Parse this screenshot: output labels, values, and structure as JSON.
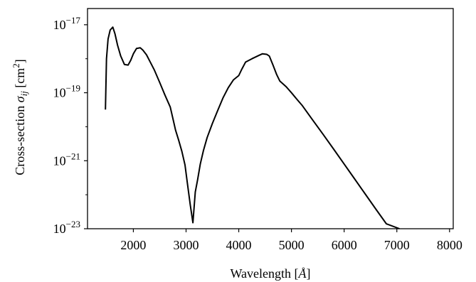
{
  "chart_data": {
    "type": "line",
    "xlabel": "Wavelength [Å]",
    "ylabel": "Cross-section σ_ij [cm²]",
    "xlim": [
      1130,
      8070
    ],
    "ylim": [
      1e-23,
      3e-17
    ],
    "yscale": "log",
    "grid": false,
    "x_ticks": [
      2000,
      3000,
      4000,
      5000,
      6000,
      7000,
      8000
    ],
    "x_tick_labels": [
      "2000",
      "3000",
      "4000",
      "5000",
      "6000",
      "7000",
      "8000"
    ],
    "y_ticks": [
      1e-23,
      1e-21,
      1e-19,
      1e-17
    ],
    "y_tick_labels": [
      {
        "base": "10",
        "exp": "−23"
      },
      {
        "base": "10",
        "exp": "−21"
      },
      {
        "base": "10",
        "exp": "−19"
      },
      {
        "base": "10",
        "exp": "−17"
      }
    ],
    "series": [
      {
        "color": "#000000",
        "x": [
          1470,
          1490,
          1520,
          1560,
          1610,
          1650,
          1700,
          1760,
          1830,
          1900,
          1950,
          2000,
          2060,
          2130,
          2180,
          2250,
          2320,
          2400,
          2500,
          2600,
          2700,
          2760,
          2800,
          2860,
          2920,
          2980,
          3020,
          3080,
          3130,
          3175,
          3220,
          3270,
          3330,
          3400,
          3500,
          3600,
          3700,
          3800,
          3900,
          4000,
          4060,
          4130,
          4250,
          4380,
          4450,
          4530,
          4580,
          4650,
          4720,
          4780,
          4900,
          5000,
          5100,
          5200,
          5400,
          5600,
          5800,
          6000,
          6200,
          6400,
          6600,
          6800,
          7050
        ],
        "y": [
          3.2e-20,
          1e-18,
          3.8e-18,
          7e-18,
          8.5e-18,
          5.5e-18,
          2.5e-18,
          1.2e-18,
          6.8e-19,
          6.5e-19,
          9e-19,
          1.4e-18,
          2e-18,
          2.1e-18,
          1.8e-18,
          1.3e-18,
          8e-19,
          4.6e-19,
          2e-19,
          8.5e-20,
          3.8e-20,
          1.5e-20,
          8e-21,
          4e-21,
          1.9e-21,
          7.5e-22,
          2.5e-22,
          5e-23,
          1.5e-23,
          1.2e-22,
          2.8e-22,
          8e-22,
          2e-21,
          4.8e-21,
          1.25e-20,
          3e-20,
          7e-20,
          1.4e-19,
          2.4e-19,
          3.2e-19,
          5e-19,
          8e-19,
          1e-18,
          1.25e-18,
          1.4e-18,
          1.35e-18,
          1.2e-18,
          6.5e-19,
          3.4e-19,
          2.2e-19,
          1.5e-19,
          1e-19,
          6.5e-20,
          4.3e-20,
          1.6e-20,
          6e-21,
          2.2e-21,
          8e-22,
          2.9e-22,
          1.05e-22,
          3.8e-23,
          1.4e-23,
          1e-23
        ]
      }
    ]
  }
}
